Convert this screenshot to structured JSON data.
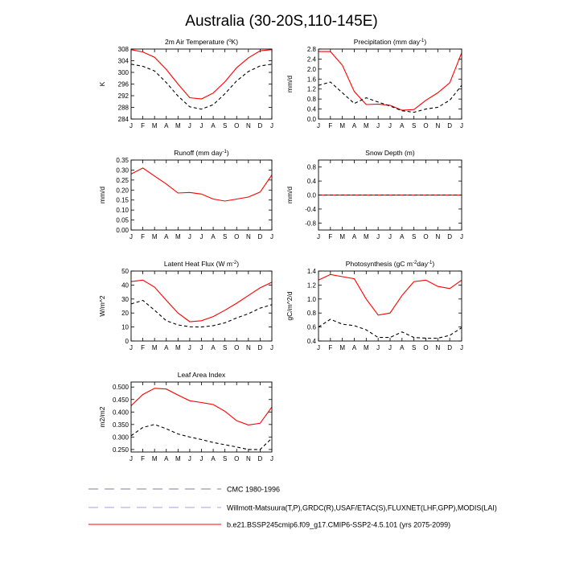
{
  "page": {
    "title": "Australia (30-20S,110-145E)"
  },
  "months": [
    "J",
    "F",
    "M",
    "A",
    "M",
    "J",
    "J",
    "A",
    "S",
    "O",
    "N",
    "D",
    "J"
  ],
  "legend": [
    {
      "label": "CMC 1980-1996",
      "color": "#7f7f9f",
      "style": "longdash"
    },
    {
      "label": "Willmott-Matsuura(T,P),GRDC(R),USAF/ETAC(S),FLUXNET(LHF,GPP),MODIS(LAI)",
      "color": "#9f9fef",
      "style": "longdash"
    },
    {
      "label": "b.e21.BSSP245cmip6.f09_g17.CMIP6-SSP2-4.5.101 (yrs 2075-2099)",
      "color": "#ff0000",
      "style": "solid"
    }
  ],
  "chart_data": [
    {
      "type": "line",
      "title_main": "2m Air Temperature (",
      "title_sup": "o",
      "title_tail": "K)",
      "ylabel": "K",
      "ylim": [
        284,
        308
      ],
      "yticks": [
        284,
        288,
        292,
        296,
        300,
        304,
        308
      ],
      "tick_labels": [
        "284",
        "288",
        "292",
        "296",
        "300",
        "304",
        "308"
      ],
      "x": [
        "J",
        "F",
        "M",
        "A",
        "M",
        "J",
        "J",
        "A",
        "S",
        "O",
        "N",
        "D",
        "J"
      ],
      "series": [
        {
          "values": [
            307.8,
            307.0,
            305.2,
            301.0,
            296.0,
            291.3,
            290.9,
            292.9,
            296.8,
            301.6,
            305.0,
            307.4,
            307.8
          ],
          "color": "#ff0000",
          "dash": "solid"
        },
        {
          "values": [
            302.8,
            302.1,
            300.5,
            296.5,
            291.9,
            288.2,
            287.4,
            288.9,
            292.7,
            297.1,
            300.3,
            302.2,
            302.8
          ],
          "color": "#000000",
          "dash": "dashed"
        }
      ]
    },
    {
      "type": "line",
      "title_main": "Precipitation (mm day",
      "title_sup": "-1",
      "title_tail": ")",
      "ylabel": "mm/d",
      "ylim": [
        0,
        2.8
      ],
      "yticks": [
        0,
        0.4,
        0.8,
        1.2,
        1.6,
        2.0,
        2.4,
        2.8
      ],
      "tick_labels": [
        "0.0",
        "0.4",
        "0.8",
        "1.2",
        "1.6",
        "2.0",
        "2.4",
        "2.8"
      ],
      "x": [
        "J",
        "F",
        "M",
        "A",
        "M",
        "J",
        "J",
        "A",
        "S",
        "O",
        "N",
        "D",
        "J"
      ],
      "series": [
        {
          "values": [
            2.7,
            2.7,
            2.15,
            1.1,
            0.58,
            0.6,
            0.55,
            0.35,
            0.38,
            0.75,
            1.05,
            1.45,
            2.65
          ],
          "color": "#ff0000",
          "dash": "solid"
        },
        {
          "values": [
            1.35,
            1.48,
            1.05,
            0.62,
            0.85,
            0.68,
            0.52,
            0.33,
            0.27,
            0.4,
            0.47,
            0.75,
            1.35
          ],
          "color": "#000000",
          "dash": "dashed"
        }
      ]
    },
    {
      "type": "line",
      "title_main": "Runoff (mm day",
      "title_sup": "-1",
      "title_tail": ")",
      "ylabel": "mm/d",
      "ylim": [
        0,
        0.35
      ],
      "yticks": [
        0,
        0.05,
        0.1,
        0.15,
        0.2,
        0.25,
        0.3,
        0.35
      ],
      "tick_labels": [
        "0.00",
        "0.05",
        "0.10",
        "0.15",
        "0.20",
        "0.25",
        "0.30",
        "0.35"
      ],
      "x": [
        "J",
        "F",
        "M",
        "A",
        "M",
        "J",
        "J",
        "A",
        "S",
        "O",
        "N",
        "D",
        "J"
      ],
      "series": [
        {
          "values": [
            0.28,
            0.31,
            0.27,
            0.23,
            0.185,
            0.188,
            0.18,
            0.155,
            0.145,
            0.155,
            0.165,
            0.19,
            0.275
          ],
          "color": "#ff0000",
          "dash": "solid"
        }
      ]
    },
    {
      "type": "line",
      "title_main": "Snow Depth (m)",
      "title_sup": "",
      "title_tail": "",
      "ylabel": "mm/d",
      "ylim": [
        -1.0,
        1.0
      ],
      "yticks": [
        -0.8,
        -0.4,
        0.0,
        0.4,
        0.8
      ],
      "tick_labels": [
        "-0.8",
        "-0.4",
        "0.0",
        "0.4",
        "0.8"
      ],
      "x": [
        "J",
        "F",
        "M",
        "A",
        "M",
        "J",
        "J",
        "A",
        "S",
        "O",
        "N",
        "D",
        "J"
      ],
      "series": [
        {
          "values": [
            0,
            0,
            0,
            0,
            0,
            0,
            0,
            0,
            0,
            0,
            0,
            0,
            0
          ],
          "color": "#ff0000",
          "dash": "solid"
        },
        {
          "values": [
            0,
            0,
            0,
            0,
            0,
            0,
            0,
            0,
            0,
            0,
            0,
            0,
            0
          ],
          "color": "#9f9fef",
          "dash": "dashed"
        },
        {
          "values": [
            0,
            0,
            0,
            0,
            0,
            0,
            0,
            0,
            0,
            0,
            0,
            0,
            0
          ],
          "color": "#000000",
          "dash": "dashed"
        }
      ]
    },
    {
      "type": "line",
      "title_main": "Latent Heat Flux (W m",
      "title_sup": "-2",
      "title_tail": ")",
      "ylabel": "W/m^2",
      "ylim": [
        0,
        50
      ],
      "yticks": [
        0,
        10,
        20,
        30,
        40,
        50
      ],
      "tick_labels": [
        "0",
        "10",
        "20",
        "30",
        "40",
        "50"
      ],
      "x": [
        "J",
        "F",
        "M",
        "A",
        "M",
        "J",
        "J",
        "A",
        "S",
        "O",
        "N",
        "D",
        "J"
      ],
      "series": [
        {
          "values": [
            42.5,
            43.5,
            38.5,
            29.0,
            20.0,
            13.8,
            14.5,
            17.5,
            22.0,
            27.0,
            32.5,
            38.0,
            42.0
          ],
          "color": "#ff0000",
          "dash": "solid"
        },
        {
          "values": [
            26.5,
            29.0,
            22.0,
            14.5,
            11.5,
            10.2,
            10.0,
            11.0,
            13.0,
            16.5,
            19.5,
            23.5,
            26.0
          ],
          "color": "#000000",
          "dash": "dashed"
        }
      ]
    },
    {
      "type": "line",
      "title_main": "Photosynthesis (gC m",
      "title_sup": "-2",
      "title_tail": "day",
      "title_sup2": "-1",
      "title_tail2": ")",
      "ylabel": "gC/m^2/d",
      "ylim": [
        0.4,
        1.4
      ],
      "yticks": [
        0.4,
        0.6,
        0.8,
        1.0,
        1.2,
        1.4
      ],
      "tick_labels": [
        "0.4",
        "0.6",
        "0.8",
        "1.0",
        "1.2",
        "1.4"
      ],
      "x": [
        "J",
        "F",
        "M",
        "A",
        "M",
        "J",
        "J",
        "A",
        "S",
        "O",
        "N",
        "D",
        "J"
      ],
      "series": [
        {
          "values": [
            1.27,
            1.35,
            1.32,
            1.29,
            1.0,
            0.77,
            0.8,
            1.05,
            1.25,
            1.27,
            1.18,
            1.15,
            1.27
          ],
          "color": "#ff0000",
          "dash": "solid"
        },
        {
          "values": [
            0.6,
            0.71,
            0.64,
            0.62,
            0.56,
            0.45,
            0.45,
            0.53,
            0.45,
            0.44,
            0.44,
            0.48,
            0.59
          ],
          "color": "#000000",
          "dash": "dashed"
        }
      ]
    },
    {
      "type": "line",
      "title_main": "Leaf Area Index",
      "title_sup": "",
      "title_tail": "",
      "ylabel": "m2/m2",
      "ylim": [
        0.24,
        0.52
      ],
      "yticks": [
        0.25,
        0.3,
        0.35,
        0.4,
        0.45,
        0.5
      ],
      "tick_labels": [
        "0.250",
        "0.300",
        "0.350",
        "0.400",
        "0.450",
        "0.500"
      ],
      "x": [
        "J",
        "F",
        "M",
        "A",
        "M",
        "J",
        "J",
        "A",
        "S",
        "O",
        "N",
        "D",
        "J"
      ],
      "series": [
        {
          "values": [
            0.425,
            0.47,
            0.495,
            0.492,
            0.468,
            0.445,
            0.438,
            0.43,
            0.403,
            0.365,
            0.348,
            0.355,
            0.42
          ],
          "color": "#ff0000",
          "dash": "solid"
        },
        {
          "values": [
            0.305,
            0.338,
            0.35,
            0.333,
            0.312,
            0.3,
            0.29,
            0.278,
            0.269,
            0.26,
            0.25,
            0.25,
            0.295
          ],
          "color": "#000000",
          "dash": "dashed"
        }
      ]
    }
  ]
}
